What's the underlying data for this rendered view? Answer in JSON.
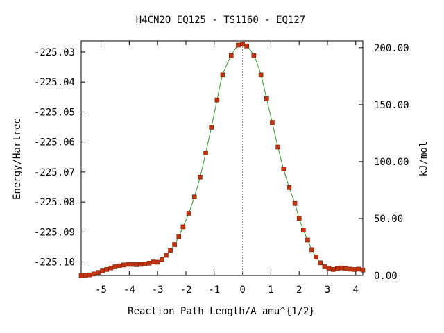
{
  "chart_data": {
    "type": "line",
    "title": "H4CN2O    EQ125 - TS1160 - EQ127",
    "xlabel": "Reaction Path Length/A amu^{1/2}",
    "ylabel": "Energy/Hartree",
    "y2label": "kJ/mol",
    "xlim": [
      -5.7,
      4.25
    ],
    "ylim": [
      -225.1045,
      -225.0263
    ],
    "y2lim": [
      0,
      206
    ],
    "x_ticks": [
      -5,
      -4,
      -3,
      -2,
      -1,
      0,
      1,
      2,
      3,
      4
    ],
    "x_tick_labels": [
      "-5",
      "-4",
      "-3",
      "-2",
      "-1",
      "0",
      "1",
      "2",
      "3",
      "4"
    ],
    "y_ticks": [
      -225.03,
      -225.04,
      -225.05,
      -225.06,
      -225.07,
      -225.08,
      -225.09,
      -225.1
    ],
    "y_tick_labels": [
      "-225.03",
      "-225.04",
      "-225.05",
      "-225.06",
      "-225.07",
      "-225.08",
      "-225.09",
      "-225.10"
    ],
    "y2_ticks": [
      0,
      50,
      100,
      150,
      200
    ],
    "y2_tick_labels": [
      "0.00",
      "50.00",
      "100.00",
      "150.00",
      "200.00"
    ],
    "ts_marker_x": 0,
    "line_color": "#2e9b2e",
    "marker_color": "#c0330e",
    "series": [
      {
        "x": [
          -5.7,
          -5.55,
          -5.4,
          -5.25,
          -5.1,
          -4.95,
          -4.8,
          -4.65,
          -4.5,
          -4.35,
          -4.2,
          -4.05,
          -3.9,
          -3.75,
          -3.6,
          -3.45,
          -3.3,
          -3.15,
          -3.0,
          -2.85,
          -2.7,
          -2.55,
          -2.4,
          -2.25,
          -2.1,
          -1.9,
          -1.7,
          -1.5,
          -1.3,
          -1.1,
          -0.9,
          -0.7,
          -0.4,
          -0.15,
          0.0,
          0.15,
          0.4,
          0.65,
          0.85,
          1.05,
          1.25,
          1.45,
          1.65,
          1.85,
          2.0,
          2.15,
          2.3,
          2.45,
          2.6,
          2.75,
          2.9,
          3.05,
          3.2,
          3.35,
          3.5,
          3.65,
          3.8,
          3.95,
          4.1,
          4.25
        ],
        "y": [
          -225.1045,
          -225.1044,
          -225.1043,
          -225.104,
          -225.1035,
          -225.103,
          -225.1025,
          -225.102,
          -225.1016,
          -225.1013,
          -225.101,
          -225.1008,
          -225.1008,
          -225.1009,
          -225.1008,
          -225.1007,
          -225.1004,
          -225.1,
          -225.1001,
          -225.0992,
          -225.0978,
          -225.0962,
          -225.0942,
          -225.0915,
          -225.0883,
          -225.0838,
          -225.0783,
          -225.0717,
          -225.0637,
          -225.0551,
          -225.046,
          -225.0376,
          -225.0312,
          -225.0277,
          -225.0274,
          -225.028,
          -225.0312,
          -225.0376,
          -225.0456,
          -225.0535,
          -225.0617,
          -225.069,
          -225.0752,
          -225.0805,
          -225.0855,
          -225.0894,
          -225.0927,
          -225.0959,
          -225.0984,
          -225.1003,
          -225.1016,
          -225.1021,
          -225.1025,
          -225.1022,
          -225.102,
          -225.1022,
          -225.1024,
          -225.1025,
          -225.1024,
          -225.1027
        ]
      }
    ]
  }
}
